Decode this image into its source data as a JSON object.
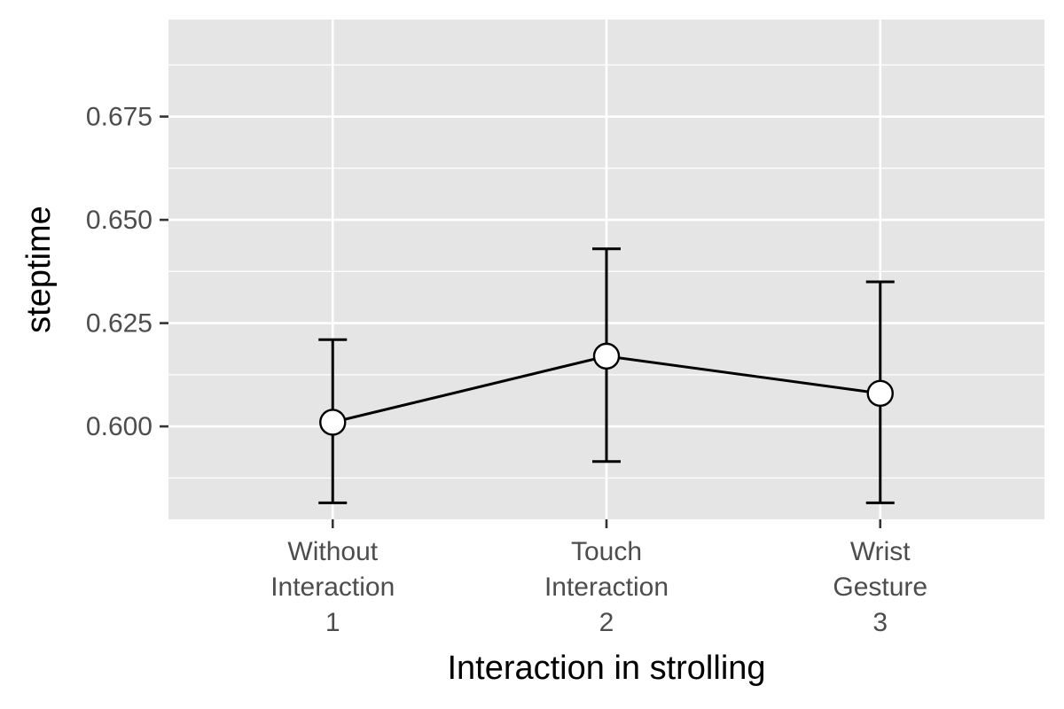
{
  "chart_data": {
    "type": "line",
    "xlabel": "Interaction in strolling",
    "ylabel": "steptime",
    "categories": [
      [
        "Without",
        "Interaction",
        "1"
      ],
      [
        "Touch",
        "Interaction",
        "2"
      ],
      [
        "Wrist",
        "Gesture",
        "3"
      ]
    ],
    "y_ticks": [
      0.6,
      0.625,
      0.65,
      0.675
    ],
    "y_tick_labels": [
      "0.600",
      "0.625",
      "0.650",
      "0.675"
    ],
    "ylim": [
      0.5775,
      0.6985
    ],
    "grid": true,
    "series": [
      {
        "values": [
          0.601,
          0.617,
          0.608
        ],
        "error_low": [
          0.5815,
          0.5915,
          0.5815
        ],
        "error_high": [
          0.621,
          0.643,
          0.635
        ]
      }
    ],
    "colors": {
      "panel_background": "#e5e5e5",
      "grid": "#ffffff",
      "line": "#000000",
      "point_fill": "#ffffff",
      "point_stroke": "#000000",
      "tick_label": "#4d4d4d",
      "tick_mark": "#333333"
    }
  }
}
